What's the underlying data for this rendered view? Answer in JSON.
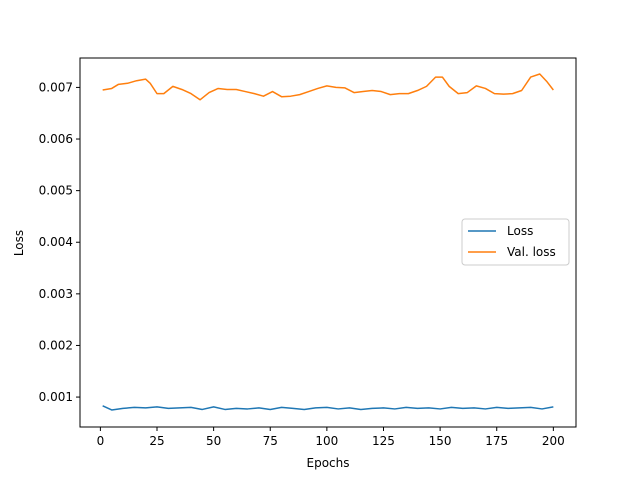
{
  "chart_data": {
    "type": "line",
    "xlabel": "Epochs",
    "ylabel": "Loss",
    "xlim": [
      -9,
      210
    ],
    "ylim": [
      0.00042,
      0.00757
    ],
    "x_ticks": [
      0,
      25,
      50,
      75,
      100,
      125,
      150,
      175,
      200
    ],
    "y_ticks": [
      0.001,
      0.002,
      0.003,
      0.004,
      0.005,
      0.006,
      0.007
    ],
    "y_tick_labels": [
      "0.001",
      "0.002",
      "0.003",
      "0.004",
      "0.005",
      "0.006",
      "0.007"
    ],
    "legend_position": "center-right",
    "grid": false,
    "series": [
      {
        "name": "Loss",
        "color": "#1f77b4",
        "x": [
          1,
          5,
          10,
          15,
          20,
          25,
          30,
          35,
          40,
          45,
          50,
          55,
          60,
          65,
          70,
          75,
          80,
          85,
          90,
          95,
          100,
          105,
          110,
          115,
          120,
          125,
          130,
          135,
          140,
          145,
          150,
          155,
          160,
          165,
          170,
          175,
          180,
          185,
          190,
          195,
          200
        ],
        "y": [
          0.00083,
          0.00075,
          0.00078,
          0.0008,
          0.00079,
          0.00081,
          0.00078,
          0.00079,
          0.0008,
          0.00076,
          0.00081,
          0.00076,
          0.00078,
          0.00077,
          0.00079,
          0.00076,
          0.0008,
          0.00078,
          0.00076,
          0.00079,
          0.0008,
          0.00077,
          0.00079,
          0.00076,
          0.00078,
          0.00079,
          0.00077,
          0.0008,
          0.00078,
          0.00079,
          0.00077,
          0.0008,
          0.00078,
          0.00079,
          0.00077,
          0.0008,
          0.00078,
          0.00079,
          0.0008,
          0.00077,
          0.00081
        ]
      },
      {
        "name": "Val. loss",
        "color": "#ff7f0e",
        "x": [
          1,
          5,
          8,
          12,
          16,
          20,
          22,
          25,
          28,
          32,
          36,
          40,
          44,
          48,
          52,
          56,
          60,
          64,
          68,
          72,
          76,
          80,
          84,
          88,
          92,
          96,
          100,
          104,
          108,
          112,
          116,
          120,
          124,
          128,
          132,
          136,
          140,
          144,
          148,
          151,
          154,
          158,
          162,
          166,
          170,
          174,
          178,
          182,
          186,
          190,
          194,
          197,
          200
        ],
        "y": [
          0.00695,
          0.00698,
          0.00706,
          0.00708,
          0.00713,
          0.00716,
          0.00708,
          0.00688,
          0.00688,
          0.00702,
          0.00696,
          0.00688,
          0.00676,
          0.0069,
          0.00698,
          0.00696,
          0.00696,
          0.00692,
          0.00688,
          0.00683,
          0.00692,
          0.00682,
          0.00683,
          0.00686,
          0.00692,
          0.00698,
          0.00703,
          0.007,
          0.00699,
          0.0069,
          0.00692,
          0.00694,
          0.00692,
          0.00686,
          0.00688,
          0.00688,
          0.00694,
          0.00702,
          0.0072,
          0.0072,
          0.00702,
          0.00688,
          0.0069,
          0.00703,
          0.00698,
          0.00688,
          0.00687,
          0.00688,
          0.00694,
          0.0072,
          0.00726,
          0.00712,
          0.00695
        ]
      }
    ]
  }
}
